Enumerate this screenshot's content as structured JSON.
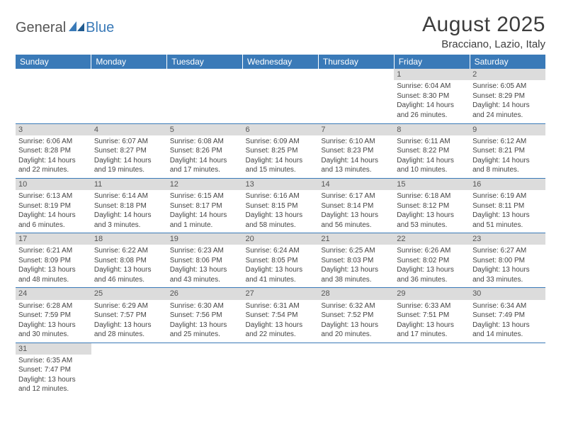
{
  "logo": {
    "general": "General",
    "blue": "Blue"
  },
  "title": "August 2025",
  "location": "Bracciano, Lazio, Italy",
  "colors": {
    "header_bg": "#3a7ab8",
    "header_text": "#ffffff",
    "daynum_bg": "#dcdcdc",
    "border": "#3a7ab8",
    "text": "#444444"
  },
  "weekdays": [
    "Sunday",
    "Monday",
    "Tuesday",
    "Wednesday",
    "Thursday",
    "Friday",
    "Saturday"
  ],
  "weeks": [
    [
      null,
      null,
      null,
      null,
      null,
      {
        "n": "1",
        "sr": "Sunrise: 6:04 AM",
        "ss": "Sunset: 8:30 PM",
        "dl": "Daylight: 14 hours and 26 minutes."
      },
      {
        "n": "2",
        "sr": "Sunrise: 6:05 AM",
        "ss": "Sunset: 8:29 PM",
        "dl": "Daylight: 14 hours and 24 minutes."
      }
    ],
    [
      {
        "n": "3",
        "sr": "Sunrise: 6:06 AM",
        "ss": "Sunset: 8:28 PM",
        "dl": "Daylight: 14 hours and 22 minutes."
      },
      {
        "n": "4",
        "sr": "Sunrise: 6:07 AM",
        "ss": "Sunset: 8:27 PM",
        "dl": "Daylight: 14 hours and 19 minutes."
      },
      {
        "n": "5",
        "sr": "Sunrise: 6:08 AM",
        "ss": "Sunset: 8:26 PM",
        "dl": "Daylight: 14 hours and 17 minutes."
      },
      {
        "n": "6",
        "sr": "Sunrise: 6:09 AM",
        "ss": "Sunset: 8:25 PM",
        "dl": "Daylight: 14 hours and 15 minutes."
      },
      {
        "n": "7",
        "sr": "Sunrise: 6:10 AM",
        "ss": "Sunset: 8:23 PM",
        "dl": "Daylight: 14 hours and 13 minutes."
      },
      {
        "n": "8",
        "sr": "Sunrise: 6:11 AM",
        "ss": "Sunset: 8:22 PM",
        "dl": "Daylight: 14 hours and 10 minutes."
      },
      {
        "n": "9",
        "sr": "Sunrise: 6:12 AM",
        "ss": "Sunset: 8:21 PM",
        "dl": "Daylight: 14 hours and 8 minutes."
      }
    ],
    [
      {
        "n": "10",
        "sr": "Sunrise: 6:13 AM",
        "ss": "Sunset: 8:19 PM",
        "dl": "Daylight: 14 hours and 6 minutes."
      },
      {
        "n": "11",
        "sr": "Sunrise: 6:14 AM",
        "ss": "Sunset: 8:18 PM",
        "dl": "Daylight: 14 hours and 3 minutes."
      },
      {
        "n": "12",
        "sr": "Sunrise: 6:15 AM",
        "ss": "Sunset: 8:17 PM",
        "dl": "Daylight: 14 hours and 1 minute."
      },
      {
        "n": "13",
        "sr": "Sunrise: 6:16 AM",
        "ss": "Sunset: 8:15 PM",
        "dl": "Daylight: 13 hours and 58 minutes."
      },
      {
        "n": "14",
        "sr": "Sunrise: 6:17 AM",
        "ss": "Sunset: 8:14 PM",
        "dl": "Daylight: 13 hours and 56 minutes."
      },
      {
        "n": "15",
        "sr": "Sunrise: 6:18 AM",
        "ss": "Sunset: 8:12 PM",
        "dl": "Daylight: 13 hours and 53 minutes."
      },
      {
        "n": "16",
        "sr": "Sunrise: 6:19 AM",
        "ss": "Sunset: 8:11 PM",
        "dl": "Daylight: 13 hours and 51 minutes."
      }
    ],
    [
      {
        "n": "17",
        "sr": "Sunrise: 6:21 AM",
        "ss": "Sunset: 8:09 PM",
        "dl": "Daylight: 13 hours and 48 minutes."
      },
      {
        "n": "18",
        "sr": "Sunrise: 6:22 AM",
        "ss": "Sunset: 8:08 PM",
        "dl": "Daylight: 13 hours and 46 minutes."
      },
      {
        "n": "19",
        "sr": "Sunrise: 6:23 AM",
        "ss": "Sunset: 8:06 PM",
        "dl": "Daylight: 13 hours and 43 minutes."
      },
      {
        "n": "20",
        "sr": "Sunrise: 6:24 AM",
        "ss": "Sunset: 8:05 PM",
        "dl": "Daylight: 13 hours and 41 minutes."
      },
      {
        "n": "21",
        "sr": "Sunrise: 6:25 AM",
        "ss": "Sunset: 8:03 PM",
        "dl": "Daylight: 13 hours and 38 minutes."
      },
      {
        "n": "22",
        "sr": "Sunrise: 6:26 AM",
        "ss": "Sunset: 8:02 PM",
        "dl": "Daylight: 13 hours and 36 minutes."
      },
      {
        "n": "23",
        "sr": "Sunrise: 6:27 AM",
        "ss": "Sunset: 8:00 PM",
        "dl": "Daylight: 13 hours and 33 minutes."
      }
    ],
    [
      {
        "n": "24",
        "sr": "Sunrise: 6:28 AM",
        "ss": "Sunset: 7:59 PM",
        "dl": "Daylight: 13 hours and 30 minutes."
      },
      {
        "n": "25",
        "sr": "Sunrise: 6:29 AM",
        "ss": "Sunset: 7:57 PM",
        "dl": "Daylight: 13 hours and 28 minutes."
      },
      {
        "n": "26",
        "sr": "Sunrise: 6:30 AM",
        "ss": "Sunset: 7:56 PM",
        "dl": "Daylight: 13 hours and 25 minutes."
      },
      {
        "n": "27",
        "sr": "Sunrise: 6:31 AM",
        "ss": "Sunset: 7:54 PM",
        "dl": "Daylight: 13 hours and 22 minutes."
      },
      {
        "n": "28",
        "sr": "Sunrise: 6:32 AM",
        "ss": "Sunset: 7:52 PM",
        "dl": "Daylight: 13 hours and 20 minutes."
      },
      {
        "n": "29",
        "sr": "Sunrise: 6:33 AM",
        "ss": "Sunset: 7:51 PM",
        "dl": "Daylight: 13 hours and 17 minutes."
      },
      {
        "n": "30",
        "sr": "Sunrise: 6:34 AM",
        "ss": "Sunset: 7:49 PM",
        "dl": "Daylight: 13 hours and 14 minutes."
      }
    ],
    [
      {
        "n": "31",
        "sr": "Sunrise: 6:35 AM",
        "ss": "Sunset: 7:47 PM",
        "dl": "Daylight: 13 hours and 12 minutes."
      },
      null,
      null,
      null,
      null,
      null,
      null
    ]
  ]
}
